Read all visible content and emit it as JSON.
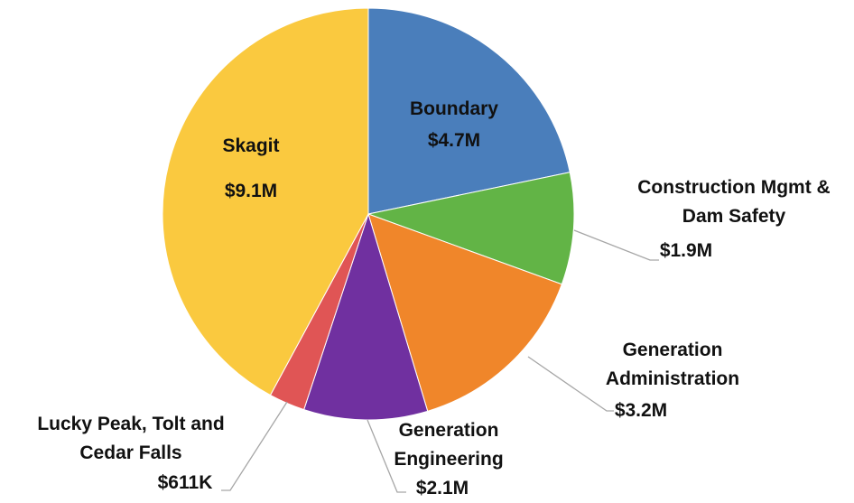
{
  "chart_data": {
    "type": "pie",
    "categories": [
      "Boundary",
      "Construction Mgmt & Dam Safety",
      "Generation Administration",
      "Generation Engineering",
      "Lucky Peak, Tolt and Cedar Falls",
      "Skagit"
    ],
    "values": [
      4700000,
      1900000,
      3200000,
      2100000,
      611000,
      9100000
    ],
    "value_labels": [
      "$4.7M",
      "$1.9M",
      "$3.2M",
      "$2.1M",
      "$611K",
      "$9.1M"
    ],
    "colors": [
      "#4a7ebb",
      "#62b446",
      "#f0862a",
      "#7030a0",
      "#e05555",
      "#fac93f"
    ]
  }
}
